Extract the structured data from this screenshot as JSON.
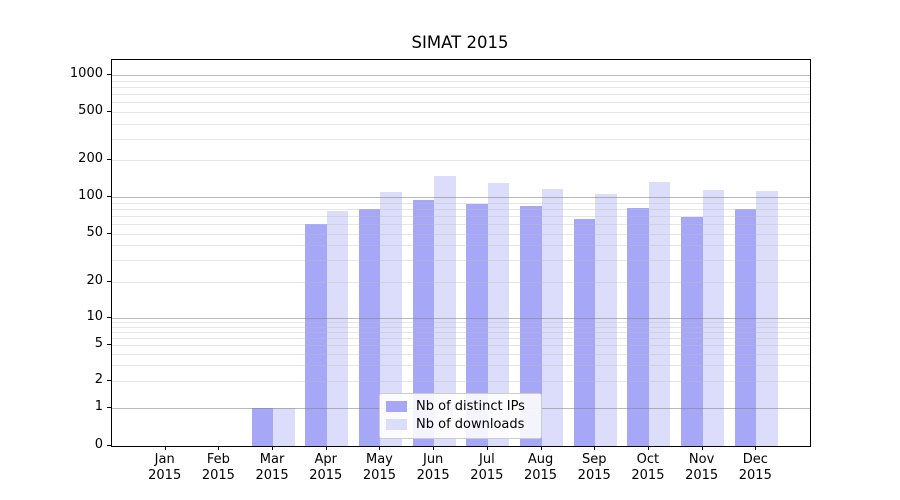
{
  "title": "SIMAT 2015",
  "chart_data": {
    "type": "bar",
    "title": "SIMAT 2015",
    "categories": [
      "Jan 2015",
      "Feb 2015",
      "Mar 2015",
      "Apr 2015",
      "May 2015",
      "Jun 2015",
      "Jul 2015",
      "Aug 2015",
      "Sep 2015",
      "Oct 2015",
      "Nov 2015",
      "Dec 2015"
    ],
    "category_line1": [
      "Jan",
      "Feb",
      "Mar",
      "Apr",
      "May",
      "Jun",
      "Jul",
      "Aug",
      "Sep",
      "Oct",
      "Nov",
      "Dec"
    ],
    "category_line2": [
      "2015",
      "2015",
      "2015",
      "2015",
      "2015",
      "2015",
      "2015",
      "2015",
      "2015",
      "2015",
      "2015",
      "2015"
    ],
    "series": [
      {
        "name": "Nb of distinct IPs",
        "color": "#a7a7f8",
        "values": [
          0,
          0,
          1,
          60,
          80,
          95,
          87,
          84,
          66,
          81,
          69,
          79
        ]
      },
      {
        "name": "Nb of downloads",
        "color": "#dcdcfb",
        "values": [
          0,
          0,
          1,
          77,
          110,
          150,
          130,
          116,
          105,
          133,
          115,
          112
        ]
      }
    ],
    "xlabel": "",
    "ylabel": "",
    "yscale": "log-like (0, 1 then log decades)",
    "ytick_labels": [
      "0",
      "1",
      "2",
      "5",
      "10",
      "20",
      "50",
      "100",
      "200",
      "500",
      "1000"
    ],
    "yticks": [
      0,
      1,
      2,
      5,
      10,
      20,
      50,
      100,
      200,
      500,
      1000
    ],
    "ylim": [
      0,
      1350
    ],
    "grid": "horizontal, minor light + major decade lines drawn over bars",
    "legend_position": "lower center",
    "colors": {
      "bar_distinct_ips": "#a7a7f8",
      "bar_downloads": "#dcdcfb",
      "grid_major": "rgba(130,130,130,0.55)",
      "grid_minor": "rgba(190,190,190,0.38)",
      "axis": "#000000",
      "background": "#ffffff"
    }
  }
}
